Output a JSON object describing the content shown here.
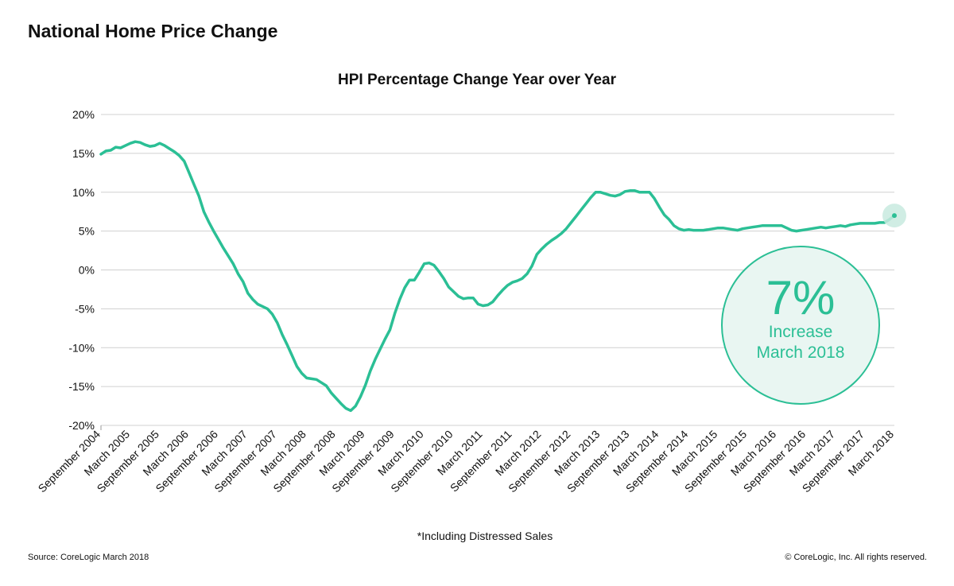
{
  "header": {
    "title": "National Home Price Change"
  },
  "footer": {
    "note": "*Including Distressed Sales",
    "source": "Source: CoreLogic March 2018",
    "copyright": "© CoreLogic, Inc. All rights reserved."
  },
  "callout": {
    "value": "7%",
    "line1": "Increase",
    "line2": "March 2018"
  },
  "colors": {
    "line": "#2bbf95",
    "grid": "#d0d0d0",
    "callout_fill": "#e9f6f2"
  },
  "chart_data": {
    "type": "line",
    "title": "HPI Percentage Change Year over Year",
    "xlabel": "",
    "ylabel": "",
    "ylim": [
      -20,
      20
    ],
    "yticks": [
      20,
      15,
      10,
      5,
      0,
      -5,
      -10,
      -15,
      -20
    ],
    "ytick_labels": [
      "20%",
      "15%",
      "10%",
      "5%",
      "0%",
      "-5%",
      "-10%",
      "-15%",
      "-20%"
    ],
    "xtick_labels": [
      "September 2004",
      "March 2005",
      "September 2005",
      "March 2006",
      "September 2006",
      "March 2007",
      "September 2007",
      "March 2008",
      "September 2008",
      "March 2009",
      "September 2009",
      "March 2010",
      "September 2010",
      "March 2011",
      "September 2011",
      "March 2012",
      "September 2012",
      "March 2013",
      "September 2013",
      "March 2014",
      "September 2014",
      "March 2015",
      "September 2015",
      "March 2016",
      "September 2016",
      "March 2017",
      "September 2017",
      "March 2018"
    ],
    "grid": true,
    "legend": "none",
    "series": [
      {
        "x": [
          "2004-09",
          "2004-10",
          "2004-11",
          "2004-12",
          "2005-01",
          "2005-02",
          "2005-03",
          "2005-04",
          "2005-05",
          "2005-06",
          "2005-07",
          "2005-08",
          "2005-09",
          "2005-10",
          "2005-11",
          "2005-12",
          "2006-01",
          "2006-02",
          "2006-03",
          "2006-04",
          "2006-05",
          "2006-06",
          "2006-07",
          "2006-08",
          "2006-09",
          "2006-10",
          "2006-11",
          "2006-12",
          "2007-01",
          "2007-02",
          "2007-03",
          "2007-04",
          "2007-05",
          "2007-06",
          "2007-07",
          "2007-08",
          "2007-09",
          "2007-10",
          "2007-11",
          "2007-12",
          "2008-01",
          "2008-02",
          "2008-03",
          "2008-04",
          "2008-05",
          "2008-06",
          "2008-07",
          "2008-08",
          "2008-09",
          "2008-10",
          "2008-11",
          "2008-12",
          "2009-01",
          "2009-02",
          "2009-03",
          "2009-04",
          "2009-05",
          "2009-06",
          "2009-07",
          "2009-08",
          "2009-09",
          "2009-10",
          "2009-11",
          "2009-12",
          "2010-01",
          "2010-02",
          "2010-03",
          "2010-04",
          "2010-05",
          "2010-06",
          "2010-07",
          "2010-08",
          "2010-09",
          "2010-10",
          "2010-11",
          "2010-12",
          "2011-01",
          "2011-02",
          "2011-03",
          "2011-04",
          "2011-05",
          "2011-06",
          "2011-07",
          "2011-08",
          "2011-09",
          "2011-10",
          "2011-11",
          "2011-12",
          "2012-01",
          "2012-02",
          "2012-03",
          "2012-04",
          "2012-05",
          "2012-06",
          "2012-07",
          "2012-08",
          "2012-09",
          "2012-10",
          "2012-11",
          "2012-12",
          "2013-01",
          "2013-02",
          "2013-03",
          "2013-04",
          "2013-05",
          "2013-06",
          "2013-07",
          "2013-08",
          "2013-09",
          "2013-10",
          "2013-11",
          "2013-12",
          "2014-01",
          "2014-02",
          "2014-03",
          "2014-04",
          "2014-05",
          "2014-06",
          "2014-07",
          "2014-08",
          "2014-09",
          "2014-10",
          "2014-11",
          "2014-12",
          "2015-01",
          "2015-02",
          "2015-03",
          "2015-04",
          "2015-05",
          "2015-06",
          "2015-07",
          "2015-08",
          "2015-09",
          "2015-10",
          "2015-11",
          "2015-12",
          "2016-01",
          "2016-02",
          "2016-03",
          "2016-04",
          "2016-05",
          "2016-06",
          "2016-07",
          "2016-08",
          "2016-09",
          "2016-10",
          "2016-11",
          "2016-12",
          "2017-01",
          "2017-02",
          "2017-03",
          "2017-04",
          "2017-05",
          "2017-06",
          "2017-07",
          "2017-08",
          "2017-09",
          "2017-10",
          "2017-11",
          "2017-12",
          "2018-01",
          "2018-02",
          "2018-03"
        ],
        "values": [
          14.9,
          15.3,
          15.4,
          15.8,
          15.7,
          16.0,
          16.3,
          16.5,
          16.4,
          16.1,
          15.9,
          16.0,
          16.3,
          16.0,
          15.6,
          15.2,
          14.7,
          14.0,
          12.5,
          11.0,
          9.5,
          7.5,
          6.2,
          5.0,
          3.9,
          2.8,
          1.8,
          0.8,
          -0.5,
          -1.5,
          -3.0,
          -3.8,
          -4.4,
          -4.7,
          -5.0,
          -5.7,
          -6.8,
          -8.3,
          -9.6,
          -11.0,
          -12.4,
          -13.3,
          -13.9,
          -14.0,
          -14.1,
          -14.5,
          -14.9,
          -15.8,
          -16.5,
          -17.2,
          -17.8,
          -18.1,
          -17.5,
          -16.3,
          -14.8,
          -13.0,
          -11.5,
          -10.2,
          -8.9,
          -7.7,
          -5.6,
          -3.8,
          -2.3,
          -1.3,
          -1.3,
          -0.3,
          0.8,
          0.9,
          0.6,
          -0.2,
          -1.1,
          -2.2,
          -2.8,
          -3.4,
          -3.7,
          -3.6,
          -3.6,
          -4.4,
          -4.6,
          -4.5,
          -4.1,
          -3.3,
          -2.6,
          -2.0,
          -1.6,
          -1.4,
          -1.1,
          -0.5,
          0.5,
          2.0,
          2.7,
          3.3,
          3.8,
          4.2,
          4.7,
          5.3,
          6.1,
          6.9,
          7.7,
          8.5,
          9.3,
          10.0,
          10.0,
          9.8,
          9.6,
          9.5,
          9.7,
          10.1,
          10.2,
          10.2,
          10.0,
          10.0,
          10.0,
          9.2,
          8.1,
          7.1,
          6.5,
          5.7,
          5.3,
          5.1,
          5.2,
          5.1,
          5.1,
          5.1,
          5.2,
          5.3,
          5.4,
          5.4,
          5.3,
          5.2,
          5.1,
          5.3,
          5.4,
          5.5,
          5.6,
          5.7,
          5.7,
          5.7,
          5.7,
          5.7,
          5.4,
          5.1,
          5.0,
          5.1,
          5.2,
          5.3,
          5.4,
          5.5,
          5.4,
          5.5,
          5.6,
          5.7,
          5.6,
          5.8,
          5.9,
          6.0,
          6.0,
          6.0,
          6.0,
          6.1,
          6.1,
          6.5,
          7.0
        ]
      }
    ],
    "highlight": {
      "x": "2018-03",
      "value": 7.0
    }
  }
}
